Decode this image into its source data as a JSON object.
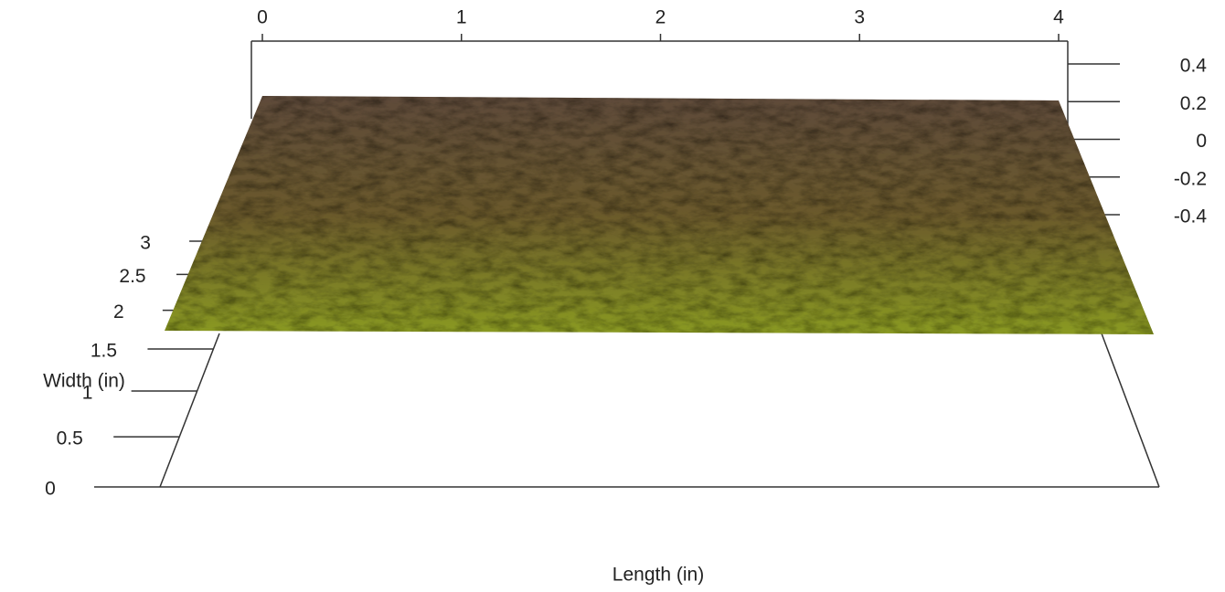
{
  "chart_data": {
    "type": "surface3d",
    "x_label": "Length (in)",
    "y_label": "Width (in)",
    "xlim": [
      0,
      4
    ],
    "xticks": [
      0,
      1,
      2,
      3,
      4
    ],
    "ylim": [
      0,
      3
    ],
    "yticks": [
      0,
      0.5,
      1,
      1.5,
      2,
      2.5,
      3
    ],
    "zlim": [
      -0.4,
      0.4
    ],
    "zticks": [
      0.4,
      0.2,
      0,
      -0.2,
      -0.4
    ],
    "surface_colors": [
      "#5e4a3a",
      "#6b5a2c",
      "#8a9a22"
    ]
  }
}
